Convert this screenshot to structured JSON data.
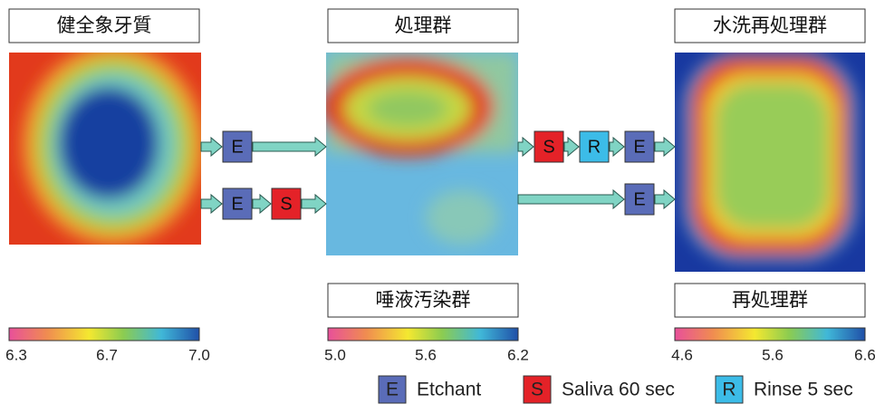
{
  "panels": [
    {
      "title": "健全象牙質",
      "scale": [
        "6.3",
        "6.7",
        "7.0"
      ]
    },
    {
      "title": "処理群",
      "subtitle": "唾液汚染群",
      "scale": [
        "5.0",
        "5.6",
        "6.2"
      ]
    },
    {
      "title": "水洗再処理群",
      "subtitle": "再処理群",
      "scale": [
        "4.6",
        "5.6",
        "6.6"
      ]
    }
  ],
  "flows": [
    {
      "steps": [
        "E"
      ]
    },
    {
      "steps": [
        "E",
        "S"
      ]
    },
    {
      "steps": [
        "S",
        "R",
        "E"
      ]
    },
    {
      "steps": [
        "E"
      ]
    }
  ],
  "legend": [
    {
      "key": "E",
      "label": "Etchant"
    },
    {
      "key": "S",
      "label": "Saliva 60 sec"
    },
    {
      "key": "R",
      "label": "Rinse 5 sec"
    }
  ]
}
